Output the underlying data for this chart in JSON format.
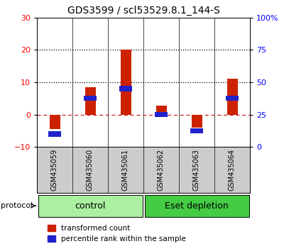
{
  "title": "GDS3599 / scl53529.8.1_144-S",
  "samples": [
    "GSM435059",
    "GSM435060",
    "GSM435061",
    "GSM435062",
    "GSM435063",
    "GSM435064"
  ],
  "red_values": [
    -4.5,
    8.5,
    20.0,
    2.8,
    -4.0,
    11.0
  ],
  "blue_values": [
    10.0,
    37.5,
    45.0,
    25.0,
    12.5,
    37.5
  ],
  "ylim_left": [
    -10,
    30
  ],
  "ylim_right": [
    0,
    100
  ],
  "yticks_left": [
    -10,
    0,
    10,
    20,
    30
  ],
  "yticks_right": [
    0,
    25,
    50,
    75,
    100
  ],
  "ytick_labels_right": [
    "0",
    "25",
    "50",
    "75",
    "100%"
  ],
  "hlines": [
    {
      "y": 0,
      "style": "dashed",
      "color": "#cc2222"
    },
    {
      "y": 10,
      "style": "dotted",
      "color": "#000000"
    },
    {
      "y": 20,
      "style": "dotted",
      "color": "#000000"
    }
  ],
  "groups": [
    {
      "label": "control",
      "start": 0,
      "end": 3,
      "color": "#aaf0a0"
    },
    {
      "label": "Eset depletion",
      "start": 3,
      "end": 6,
      "color": "#44cc44"
    }
  ],
  "protocol_label": "protocol",
  "red_color": "#cc2200",
  "blue_color": "#2222cc",
  "bar_width": 0.3,
  "label_red": "transformed count",
  "label_blue": "percentile rank within the sample",
  "sample_box_color": "#cccccc",
  "background_color": "#ffffff",
  "title_fontsize": 10,
  "axis_tick_fontsize": 8,
  "sample_fontsize": 7,
  "group_fontsize": 9,
  "legend_fontsize": 7.5
}
